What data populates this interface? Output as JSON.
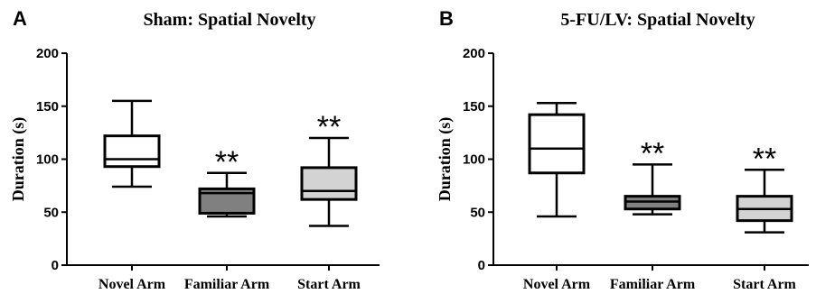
{
  "chart_data": [
    {
      "type": "box",
      "panel_label": "A",
      "title": "Sham: Spatial Novelty",
      "xlabel": "",
      "ylabel": "Duration (s)",
      "ylim": [
        0,
        200
      ],
      "yticks": [
        "0",
        "50",
        "100",
        "150",
        "200"
      ],
      "categories": [
        "Novel Arm",
        "Familiar Arm",
        "Start Arm"
      ],
      "boxes": [
        {
          "min": 74,
          "q1": 93,
          "median": 100,
          "q3": 122,
          "max": 155,
          "fill": "#ffffff",
          "annotation": ""
        },
        {
          "min": 46,
          "q1": 49,
          "median": 68,
          "q3": 72,
          "max": 87,
          "fill": "#808080",
          "annotation": "**"
        },
        {
          "min": 37,
          "q1": 62,
          "median": 70,
          "q3": 92,
          "max": 120,
          "fill": "#d3d3d3",
          "annotation": "**"
        }
      ]
    },
    {
      "type": "box",
      "panel_label": "B",
      "title": "5-FU/LV: Spatial Novelty",
      "xlabel": "",
      "ylabel": "Duration (s)",
      "ylim": [
        0,
        200
      ],
      "yticks": [
        "0",
        "50",
        "100",
        "150",
        "200"
      ],
      "categories": [
        "Novel Arm",
        "Familiar Arm",
        "Start Arm"
      ],
      "boxes": [
        {
          "min": 46,
          "q1": 87,
          "median": 110,
          "q3": 142,
          "max": 153,
          "fill": "#ffffff",
          "annotation": ""
        },
        {
          "min": 48,
          "q1": 53,
          "median": 60,
          "q3": 65,
          "max": 95,
          "fill": "#808080",
          "annotation": "**"
        },
        {
          "min": 31,
          "q1": 42,
          "median": 53,
          "q3": 65,
          "max": 90,
          "fill": "#d3d3d3",
          "annotation": "**"
        }
      ]
    }
  ]
}
